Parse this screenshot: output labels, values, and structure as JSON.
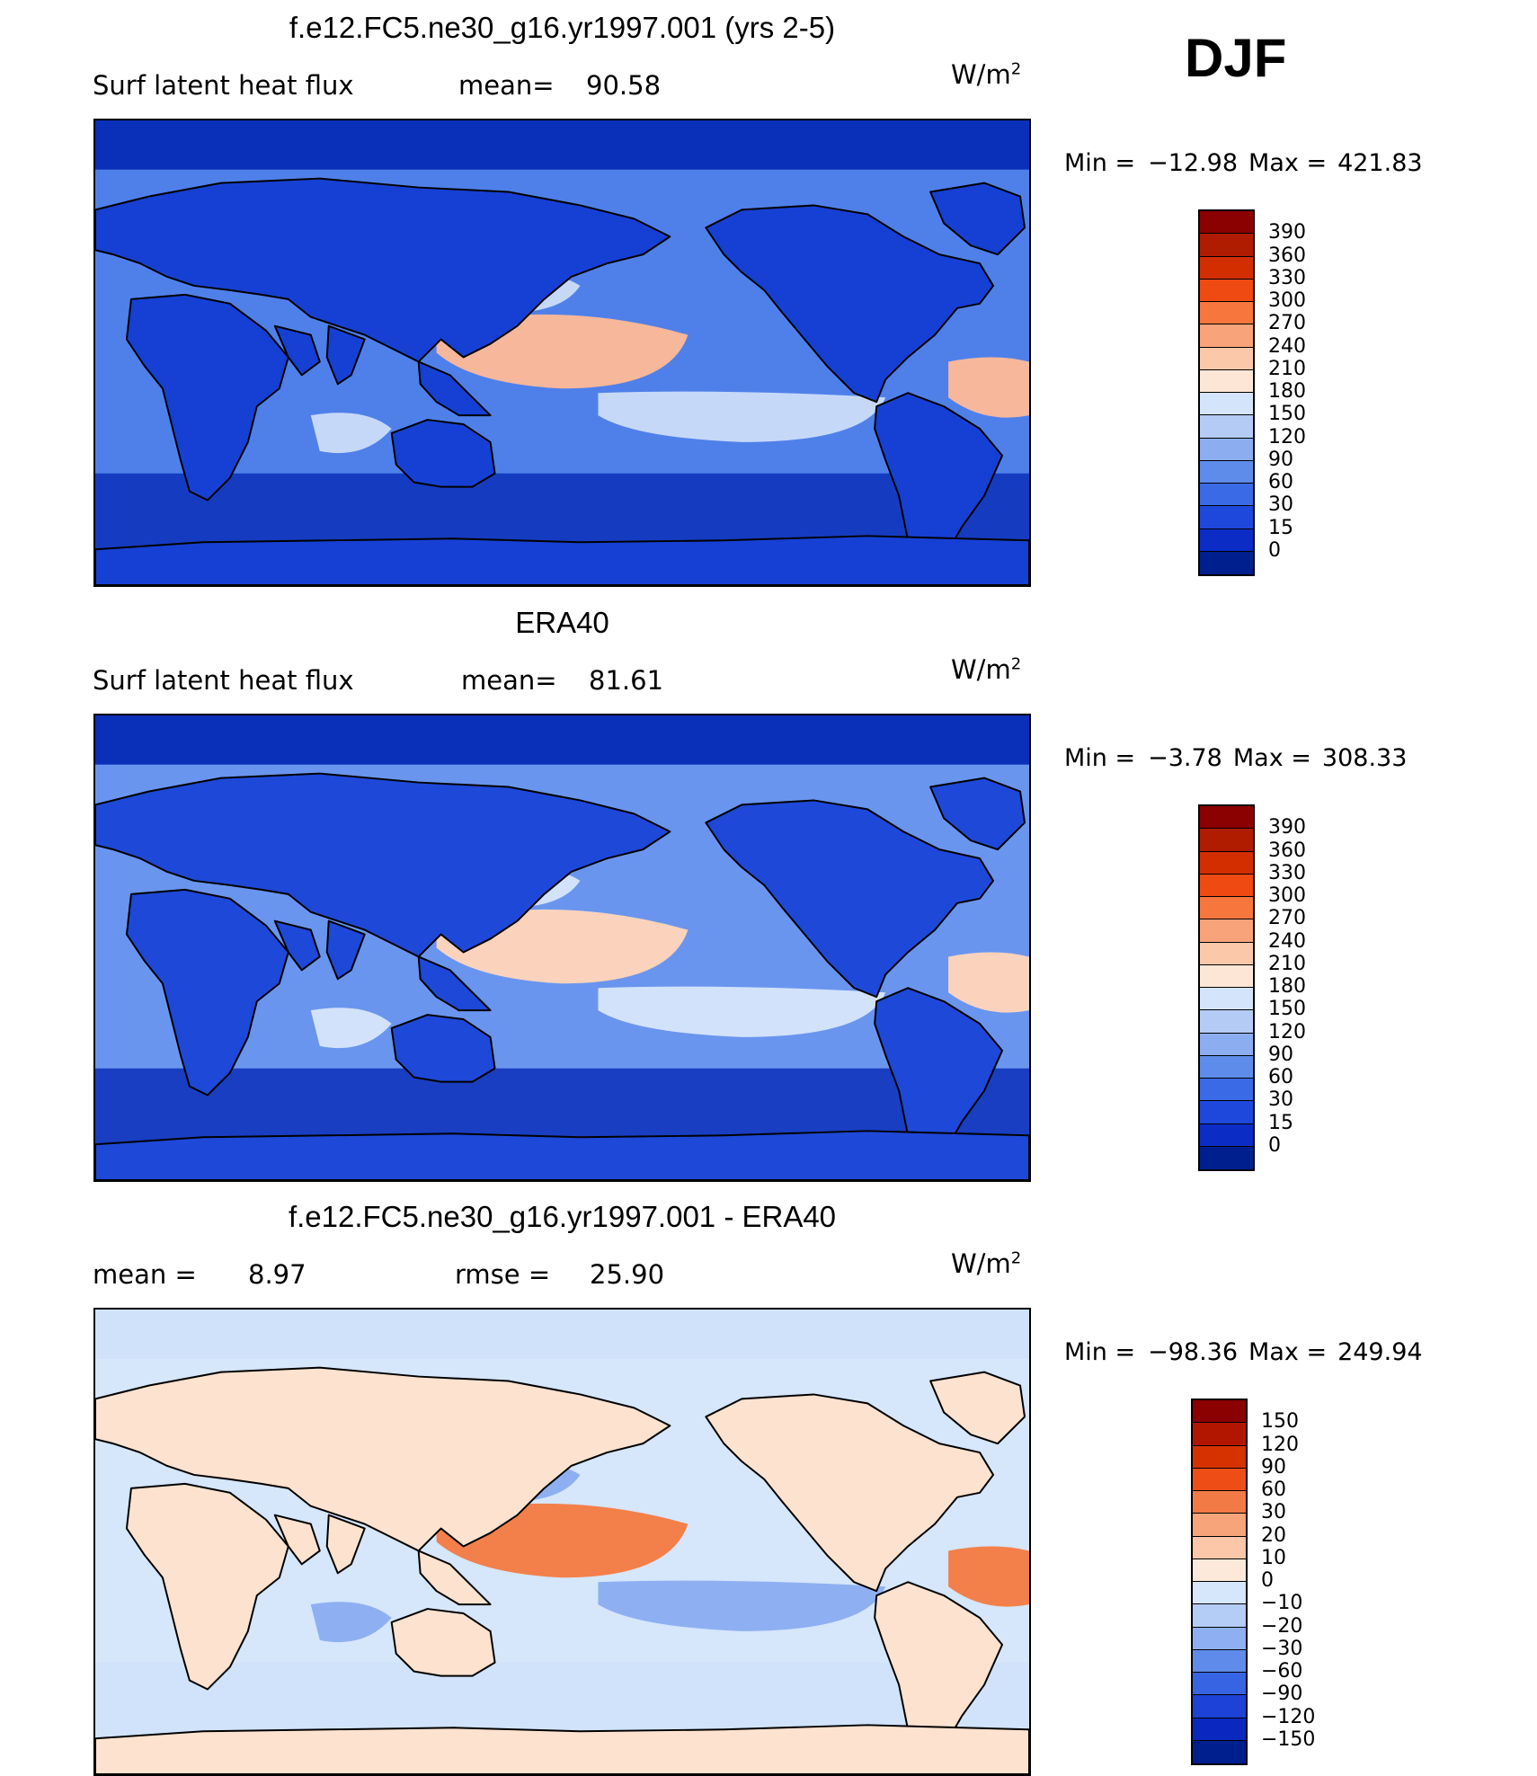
{
  "season": "DJF",
  "panels": [
    {
      "id": "model",
      "title": "f.e12.FC5.ne30_g16.yr1997.001 (yrs 2-5)",
      "left_label": "Surf  latent  heat  flux",
      "stat1_label": "mean=",
      "stat1_value": "90.58",
      "stat2_label": "",
      "stat2_value": "",
      "units_base": "W/m",
      "units_exp": "2",
      "min_label": "Min  =",
      "min_value": "−12.98",
      "max_label": "Max  =",
      "max_value": "421.83",
      "levels": [
        "390",
        "360",
        "330",
        "300",
        "270",
        "240",
        "210",
        "180",
        "150",
        "120",
        "90",
        "60",
        "30",
        "15",
        "0"
      ],
      "colors": [
        "#8b0000",
        "#b01c00",
        "#d22e00",
        "#ee4a12",
        "#f6763d",
        "#f9a37a",
        "#fcc8aa",
        "#fde6d6",
        "#d4e4fa",
        "#b4cbf6",
        "#8caef0",
        "#5e8cea",
        "#3a6ae6",
        "#1e48dc",
        "#0c2cc6",
        "#001f8f"
      ],
      "map_colors": {
        "ocean": "#4f80ea",
        "land": "#1640d4",
        "pole": "#0a2fb8",
        "warm": "#f7b79a",
        "hot": "#e8501a",
        "mid": "#c6d8f8"
      }
    },
    {
      "id": "obs",
      "title": "ERA40",
      "left_label": "Surf  latent  heat  flux",
      "stat1_label": "mean=",
      "stat1_value": "81.61",
      "stat2_label": "",
      "stat2_value": "",
      "units_base": "W/m",
      "units_exp": "2",
      "min_label": "Min  =",
      "min_value": "−3.78",
      "max_label": "Max  =",
      "max_value": "308.33",
      "levels": [
        "390",
        "360",
        "330",
        "300",
        "270",
        "240",
        "210",
        "180",
        "150",
        "120",
        "90",
        "60",
        "30",
        "15",
        "0"
      ],
      "colors": [
        "#8b0000",
        "#b01c00",
        "#d22e00",
        "#ee4a12",
        "#f6763d",
        "#f9a37a",
        "#fcc8aa",
        "#fde6d6",
        "#d4e4fa",
        "#b4cbf6",
        "#8caef0",
        "#5e8cea",
        "#3a6ae6",
        "#1e48dc",
        "#0c2cc6",
        "#001f8f"
      ],
      "map_colors": {
        "ocean": "#6a95ee",
        "land": "#1e48d8",
        "pole": "#0a2fb8",
        "warm": "#fbd3bc",
        "hot": "#f07a45",
        "mid": "#d2e2fb"
      }
    },
    {
      "id": "diff",
      "title": "f.e12.FC5.ne30_g16.yr1997.001 - ERA40",
      "left_label": "mean  =",
      "stat1_label": "",
      "stat1_value": "8.97",
      "stat2_label": "rmse  =",
      "stat2_value": "25.90",
      "units_base": "W/m",
      "units_exp": "2",
      "min_label": "Min  =",
      "min_value": "−98.36",
      "max_label": "Max  =",
      "max_value": "249.94",
      "levels": [
        "150",
        "120",
        "90",
        "60",
        "30",
        "20",
        "10",
        "0",
        "−10",
        "−20",
        "−30",
        "−60",
        "−90",
        "−120",
        "−150"
      ],
      "colors": [
        "#8b0000",
        "#b31600",
        "#d63200",
        "#ee4e16",
        "#f27a44",
        "#f7a47a",
        "#fbc7a8",
        "#fde9da",
        "#d6e6fb",
        "#b4cdf7",
        "#8eb0f2",
        "#5f8cea",
        "#3764e2",
        "#1c42d8",
        "#0a28c0",
        "#001f8f"
      ],
      "map_colors": {
        "ocean": "#d6e6fb",
        "land": "#fde2cf",
        "pole": "#cfe2fa",
        "warm": "#f3804a",
        "hot": "#d63a0a",
        "mid": "#8eb0f2"
      }
    }
  ]
}
